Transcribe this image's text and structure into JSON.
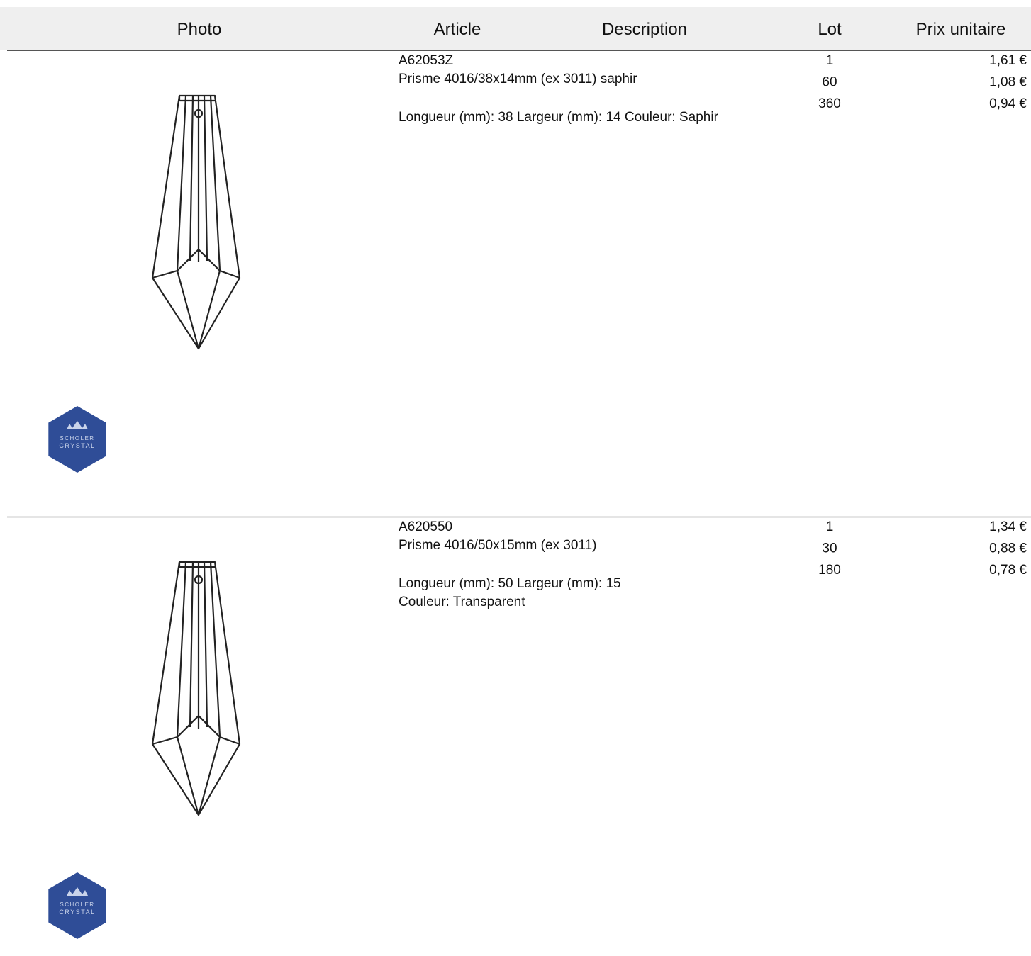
{
  "header": {
    "photo": "Photo",
    "article": "Article",
    "description": "Description",
    "lot": "Lot",
    "price": "Prix unitaire"
  },
  "logo": {
    "line1": "SCHOLER",
    "line2": "CRYSTAL"
  },
  "rows": [
    {
      "code": "A62053Z",
      "name": "Prisme 4016/38x14mm (ex 3011) saphir",
      "details": [
        "Longueur (mm): 38 Largeur (mm): 14 Couleur: Saphir"
      ],
      "tiers": [
        {
          "lot": "1",
          "price": "1,61 €"
        },
        {
          "lot": "60",
          "price": "1,08 €"
        },
        {
          "lot": "360",
          "price": "0,94 €"
        }
      ]
    },
    {
      "code": "A620550",
      "name": "Prisme 4016/50x15mm (ex 3011)",
      "details": [
        "Longueur (mm): 50 Largeur (mm): 15",
        "Couleur: Transparent"
      ],
      "tiers": [
        {
          "lot": "1",
          "price": "1,34 €"
        },
        {
          "lot": "30",
          "price": "0,88 €"
        },
        {
          "lot": "180",
          "price": "0,78 €"
        }
      ]
    }
  ]
}
